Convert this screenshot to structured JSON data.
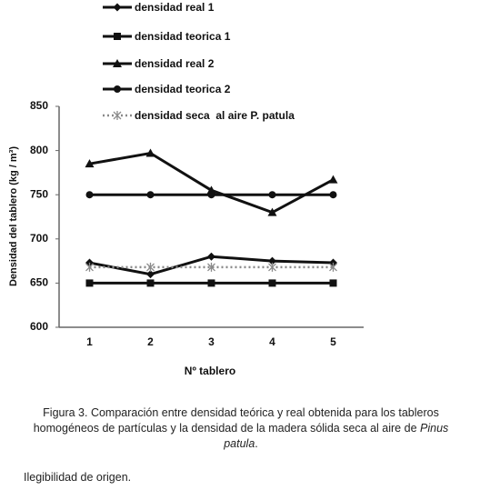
{
  "chart_data": {
    "type": "line",
    "y_label": "Densidad del tablero (kg / m³)",
    "x_label": "Nº tablero",
    "categories": [
      "1",
      "2",
      "3",
      "4",
      "5"
    ],
    "ylim": [
      600,
      850
    ],
    "yticks": [
      600,
      650,
      700,
      750,
      800,
      850
    ],
    "series": [
      {
        "name": "densidad real 1",
        "color": "#111111",
        "marker": "diamond",
        "style": "solid",
        "values": [
          673,
          660,
          680,
          675,
          673
        ]
      },
      {
        "name": "densidad teorica 1",
        "color": "#111111",
        "marker": "square",
        "style": "solid",
        "values": [
          650,
          650,
          650,
          650,
          650
        ]
      },
      {
        "name": "densidad real 2",
        "color": "#111111",
        "marker": "triangle",
        "style": "solid",
        "values": [
          785,
          797,
          755,
          730,
          767
        ]
      },
      {
        "name": "densidad teorica 2",
        "color": "#111111",
        "marker": "circle",
        "style": "solid",
        "values": [
          750,
          750,
          750,
          750,
          750
        ]
      },
      {
        "name": "densidad seca  al aire P. patula",
        "color": "#8a8a8a",
        "marker": "asterisk",
        "style": "dotted",
        "values": [
          668,
          668,
          668,
          668,
          668
        ]
      }
    ]
  },
  "caption": {
    "text": "Figura 3. Comparación entre densidad teórica y real obtenida para los tableros homogéneos de partículas y la densidad de la madera sólida seca al aire de ",
    "italic": "Pinus patula",
    "end": "."
  },
  "note": "Ilegibilidad de origen."
}
